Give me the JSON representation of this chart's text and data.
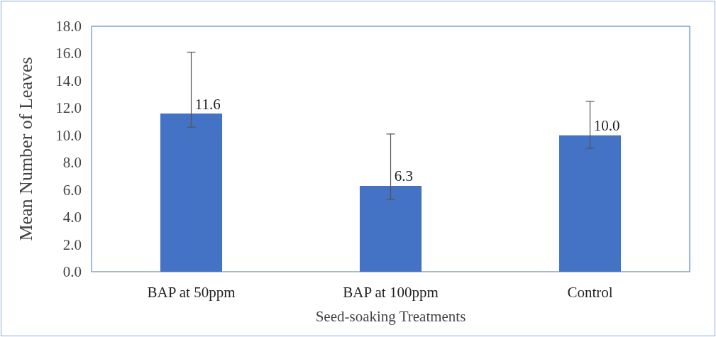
{
  "chart_data": {
    "type": "bar",
    "xlabel": "Seed-soaking Treatments",
    "ylabel": "Mean Number of Leaves",
    "categories": [
      "BAP at 50ppm",
      "BAP at 100ppm",
      "Control"
    ],
    "values": [
      11.6,
      6.3,
      10.0
    ],
    "color": "#4472c4",
    "value_labels": [
      "11.6",
      "6.3",
      "10.0"
    ],
    "errors": [
      [
        10.6,
        16.1
      ],
      [
        5.3,
        10.1
      ],
      [
        9.05,
        12.5
      ]
    ],
    "ylim": [
      0,
      18
    ],
    "yticks": [
      {
        "value": 0,
        "label": "0.0"
      },
      {
        "value": 2,
        "label": "2.0"
      },
      {
        "value": 4,
        "label": "4.0"
      },
      {
        "value": 6,
        "label": "6.0"
      },
      {
        "value": 8,
        "label": "8.0"
      },
      {
        "value": 10,
        "label": "10.0"
      },
      {
        "value": 12,
        "label": "12.0"
      },
      {
        "value": 14,
        "label": "14.0"
      },
      {
        "value": 16,
        "label": "16.0"
      },
      {
        "value": 18,
        "label": "18.0"
      }
    ],
    "grid": false
  }
}
